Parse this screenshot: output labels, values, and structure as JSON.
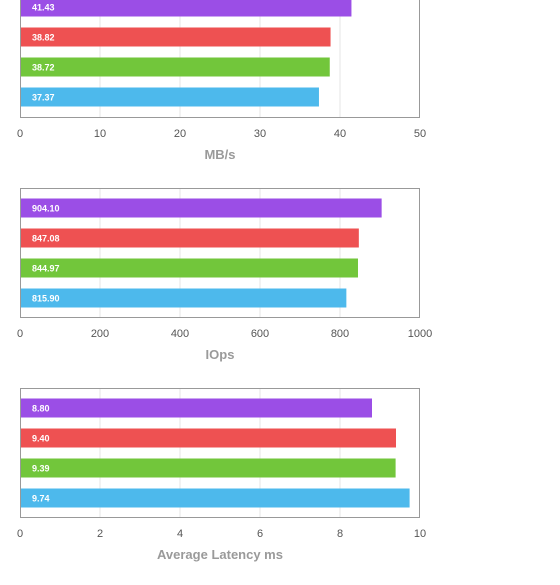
{
  "colors": {
    "purple": "#9b4ee6",
    "red": "#ee5152",
    "green": "#72c63b",
    "blue": "#4db9ec",
    "gridline": "#e6e6e6",
    "frame": "#999999",
    "tick_text": "#555555",
    "axis_title": "#9a9a9a"
  },
  "chart_data": [
    {
      "type": "bar",
      "orientation": "horizontal",
      "xlabel": "MB/s",
      "xlim": [
        0,
        50
      ],
      "ticks": [
        "0",
        "10",
        "20",
        "30",
        "40",
        "50"
      ],
      "grid": true,
      "values": [
        41.43,
        38.82,
        38.72,
        37.37
      ],
      "value_labels": [
        "41.43",
        "38.82",
        "38.72",
        "37.37"
      ],
      "bar_colors": [
        "#9b4ee6",
        "#ee5152",
        "#72c63b",
        "#4db9ec"
      ]
    },
    {
      "type": "bar",
      "orientation": "horizontal",
      "xlabel": "IOps",
      "xlim": [
        0,
        1000
      ],
      "ticks": [
        "0",
        "200",
        "400",
        "600",
        "800",
        "1000"
      ],
      "grid": true,
      "values": [
        904.1,
        847.08,
        844.97,
        815.9
      ],
      "value_labels": [
        "904.10",
        "847.08",
        "844.97",
        "815.90"
      ],
      "bar_colors": [
        "#9b4ee6",
        "#ee5152",
        "#72c63b",
        "#4db9ec"
      ]
    },
    {
      "type": "bar",
      "orientation": "horizontal",
      "xlabel": "Average Latency ms",
      "xlim": [
        0,
        10
      ],
      "ticks": [
        "0",
        "2",
        "4",
        "6",
        "8",
        "10"
      ],
      "grid": true,
      "values": [
        8.8,
        9.4,
        9.39,
        9.74
      ],
      "value_labels": [
        "8.80",
        "9.40",
        "9.39",
        "9.74"
      ],
      "bar_colors": [
        "#9b4ee6",
        "#ee5152",
        "#72c63b",
        "#4db9ec"
      ]
    }
  ]
}
